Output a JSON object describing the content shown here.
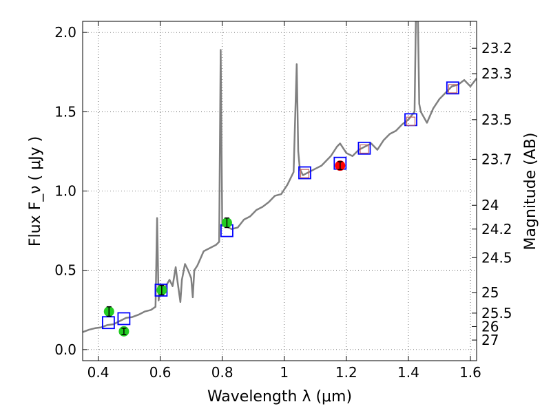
{
  "chart_data": {
    "type": "scatter",
    "xlabel": "Wavelength  λ (μm)",
    "ylabel": "Flux  F_ν  ( μJy )",
    "ylabel_right": "Magnitude (AB)",
    "xlim": [
      0.35,
      1.62
    ],
    "ylim": [
      -0.07,
      2.07
    ],
    "xticks": [
      0.4,
      0.6,
      0.8,
      1.0,
      1.2,
      1.4,
      1.6
    ],
    "xtick_labels": [
      "0.4",
      "0.6",
      "0.8",
      "1",
      "1.2",
      "1.4",
      "1.6"
    ],
    "yticks": [
      0.0,
      0.5,
      1.0,
      1.5,
      2.0
    ],
    "ytick_labels": [
      "0.0",
      "0.5",
      "1.0",
      "1.5",
      "2.0"
    ],
    "right_ticks": [
      {
        "label": "23.2",
        "flux": 1.9
      },
      {
        "label": "23.3",
        "flux": 1.74
      },
      {
        "label": "23.5",
        "flux": 1.45
      },
      {
        "label": "23.7",
        "flux": 1.2
      },
      {
        "label": "24",
        "flux": 0.91
      },
      {
        "label": "24.2",
        "flux": 0.76
      },
      {
        "label": "24.5",
        "flux": 0.58
      },
      {
        "label": "25",
        "flux": 0.36
      },
      {
        "label": "25.5",
        "flux": 0.23
      },
      {
        "label": "26",
        "flux": 0.145
      },
      {
        "label": "27",
        "flux": 0.06
      }
    ],
    "grid": true,
    "colors": {
      "spectrum": "#808080",
      "model_box_edge": "#0000ff",
      "model_box_inner": "#c06060",
      "green_points": "#22cc22",
      "red_points": "#ff0000"
    },
    "series": [
      {
        "kind": "line",
        "points": [
          [
            0.35,
            0.11
          ],
          [
            0.37,
            0.125
          ],
          [
            0.39,
            0.135
          ],
          [
            0.41,
            0.14
          ],
          [
            0.43,
            0.155
          ],
          [
            0.45,
            0.16
          ],
          [
            0.47,
            0.18
          ],
          [
            0.49,
            0.2
          ],
          [
            0.51,
            0.205
          ],
          [
            0.53,
            0.22
          ],
          [
            0.55,
            0.24
          ],
          [
            0.57,
            0.25
          ],
          [
            0.585,
            0.27
          ],
          [
            0.59,
            0.83
          ],
          [
            0.595,
            0.31
          ],
          [
            0.6,
            0.38
          ],
          [
            0.615,
            0.39
          ],
          [
            0.63,
            0.44
          ],
          [
            0.64,
            0.4
          ],
          [
            0.65,
            0.52
          ],
          [
            0.655,
            0.44
          ],
          [
            0.665,
            0.3
          ],
          [
            0.67,
            0.44
          ],
          [
            0.68,
            0.54
          ],
          [
            0.69,
            0.5
          ],
          [
            0.7,
            0.45
          ],
          [
            0.705,
            0.33
          ],
          [
            0.71,
            0.5
          ],
          [
            0.72,
            0.53
          ],
          [
            0.74,
            0.62
          ],
          [
            0.76,
            0.64
          ],
          [
            0.78,
            0.66
          ],
          [
            0.79,
            0.68
          ],
          [
            0.795,
            1.89
          ],
          [
            0.8,
            0.78
          ],
          [
            0.81,
            0.78
          ],
          [
            0.83,
            0.76
          ],
          [
            0.85,
            0.77
          ],
          [
            0.87,
            0.82
          ],
          [
            0.89,
            0.84
          ],
          [
            0.91,
            0.88
          ],
          [
            0.93,
            0.9
          ],
          [
            0.95,
            0.93
          ],
          [
            0.97,
            0.97
          ],
          [
            0.99,
            0.98
          ],
          [
            1.01,
            1.04
          ],
          [
            1.03,
            1.12
          ],
          [
            1.04,
            1.8
          ],
          [
            1.045,
            1.25
          ],
          [
            1.05,
            1.14
          ],
          [
            1.06,
            1.1
          ],
          [
            1.08,
            1.12
          ],
          [
            1.1,
            1.14
          ],
          [
            1.12,
            1.16
          ],
          [
            1.15,
            1.22
          ],
          [
            1.17,
            1.28
          ],
          [
            1.18,
            1.3
          ],
          [
            1.2,
            1.24
          ],
          [
            1.22,
            1.22
          ],
          [
            1.24,
            1.26
          ],
          [
            1.26,
            1.28
          ],
          [
            1.28,
            1.3
          ],
          [
            1.3,
            1.26
          ],
          [
            1.32,
            1.32
          ],
          [
            1.34,
            1.36
          ],
          [
            1.36,
            1.38
          ],
          [
            1.38,
            1.42
          ],
          [
            1.4,
            1.45
          ],
          [
            1.42,
            1.5
          ],
          [
            1.425,
            2.2
          ],
          [
            1.43,
            2.2
          ],
          [
            1.435,
            1.55
          ],
          [
            1.44,
            1.5
          ],
          [
            1.46,
            1.43
          ],
          [
            1.48,
            1.52
          ],
          [
            1.5,
            1.58
          ],
          [
            1.52,
            1.62
          ],
          [
            1.54,
            1.66
          ],
          [
            1.56,
            1.67
          ],
          [
            1.58,
            1.7
          ],
          [
            1.6,
            1.66
          ],
          [
            1.62,
            1.71
          ]
        ]
      },
      {
        "kind": "model-boxes",
        "points": [
          [
            0.433,
            0.17
          ],
          [
            0.483,
            0.195
          ],
          [
            0.603,
            0.375
          ],
          [
            0.815,
            0.75
          ],
          [
            1.066,
            1.115
          ],
          [
            1.18,
            1.175
          ],
          [
            1.258,
            1.27
          ],
          [
            1.408,
            1.45
          ],
          [
            1.543,
            1.65
          ]
        ]
      },
      {
        "kind": "model-boxes-inner",
        "points": [
          [
            1.066,
            1.11
          ],
          [
            1.258,
            1.265
          ],
          [
            1.408,
            1.44
          ],
          [
            1.543,
            1.645
          ]
        ]
      },
      {
        "kind": "green-points",
        "points": [
          [
            0.435,
            0.24,
            0.03
          ],
          [
            0.483,
            0.115,
            0.02
          ],
          [
            0.605,
            0.375,
            0.03
          ],
          [
            0.815,
            0.8,
            0.03
          ]
        ]
      },
      {
        "kind": "red-points",
        "points": [
          [
            1.18,
            1.16,
            0.025
          ]
        ]
      }
    ]
  }
}
